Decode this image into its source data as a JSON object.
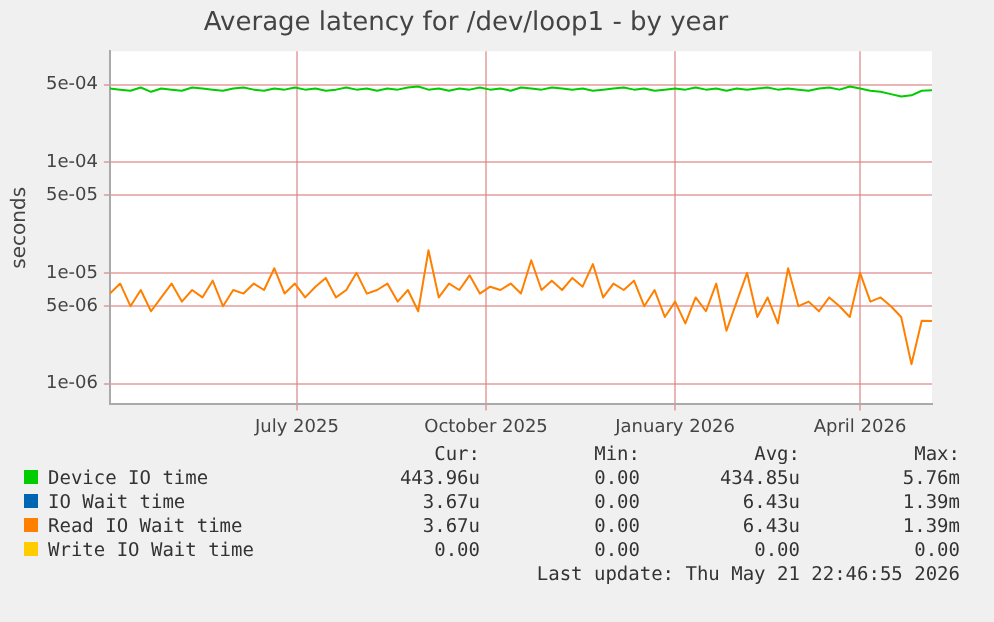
{
  "chart_data": {
    "type": "line",
    "title": "Average latency for /dev/loop1 - by year",
    "ylabel": "seconds",
    "log": true,
    "grid": true,
    "legend": "bottom",
    "xlim": [
      "2025-04-16",
      "2026-05-21"
    ],
    "xticks": [
      {
        "value": "2025-07-16",
        "label": "July 2025"
      },
      {
        "value": "2025-10-16",
        "label": "October 2025"
      },
      {
        "value": "2026-01-16",
        "label": "January 2026"
      },
      {
        "value": "2026-04-16",
        "label": "April 2026"
      }
    ],
    "ylim": [
      6.5e-07,
      0.001
    ],
    "yticks": [
      {
        "value": 1e-06,
        "label": "1e-06"
      },
      {
        "value": 5e-06,
        "label": "5e-06"
      },
      {
        "value": 1e-05,
        "label": "1e-05"
      },
      {
        "value": 5e-05,
        "label": "5e-05"
      },
      {
        "value": 0.0001,
        "label": "1e-04"
      },
      {
        "value": 0.0005,
        "label": "5e-04"
      }
    ],
    "x": [
      "2025-04-16",
      "2025-04-21",
      "2025-04-26",
      "2025-05-01",
      "2025-05-06",
      "2025-05-11",
      "2025-05-16",
      "2025-05-21",
      "2025-05-26",
      "2025-05-31",
      "2025-06-05",
      "2025-06-10",
      "2025-06-15",
      "2025-06-20",
      "2025-06-25",
      "2025-06-30",
      "2025-07-05",
      "2025-07-10",
      "2025-07-15",
      "2025-07-20",
      "2025-07-25",
      "2025-07-30",
      "2025-08-04",
      "2025-08-09",
      "2025-08-14",
      "2025-08-19",
      "2025-08-24",
      "2025-08-29",
      "2025-09-03",
      "2025-09-08",
      "2025-09-13",
      "2025-09-18",
      "2025-09-23",
      "2025-09-28",
      "2025-10-03",
      "2025-10-08",
      "2025-10-13",
      "2025-10-18",
      "2025-10-23",
      "2025-10-28",
      "2025-11-02",
      "2025-11-07",
      "2025-11-12",
      "2025-11-17",
      "2025-11-22",
      "2025-11-27",
      "2025-12-02",
      "2025-12-07",
      "2025-12-12",
      "2025-12-17",
      "2025-12-22",
      "2025-12-27",
      "2026-01-01",
      "2026-01-06",
      "2026-01-11",
      "2026-01-16",
      "2026-01-21",
      "2026-01-26",
      "2026-01-31",
      "2026-02-05",
      "2026-02-10",
      "2026-02-15",
      "2026-02-20",
      "2026-02-25",
      "2026-03-02",
      "2026-03-07",
      "2026-03-12",
      "2026-03-17",
      "2026-03-22",
      "2026-03-27",
      "2026-04-01",
      "2026-04-06",
      "2026-04-11",
      "2026-04-16",
      "2026-04-21",
      "2026-04-26",
      "2026-05-01",
      "2026-05-06",
      "2026-05-11",
      "2026-05-16",
      "2026-05-21"
    ],
    "series": [
      {
        "name": "Device IO time",
        "color": "#00cc00",
        "values": [
          0.00046,
          0.00045,
          0.00044,
          0.00047,
          0.00043,
          0.00046,
          0.00045,
          0.00044,
          0.00047,
          0.00046,
          0.00045,
          0.00044,
          0.00046,
          0.00047,
          0.00045,
          0.00044,
          0.00046,
          0.00045,
          0.00047,
          0.00045,
          0.00046,
          0.00044,
          0.00045,
          0.00047,
          0.00045,
          0.00046,
          0.00044,
          0.00046,
          0.00045,
          0.00047,
          0.00048,
          0.00045,
          0.00046,
          0.00044,
          0.00046,
          0.00045,
          0.00047,
          0.00045,
          0.00046,
          0.00044,
          0.00047,
          0.00046,
          0.00045,
          0.00047,
          0.00046,
          0.00045,
          0.00046,
          0.00044,
          0.00045,
          0.00046,
          0.00047,
          0.00045,
          0.00046,
          0.00044,
          0.00045,
          0.00046,
          0.00045,
          0.00047,
          0.00045,
          0.00046,
          0.00044,
          0.00046,
          0.00045,
          0.00046,
          0.00047,
          0.00045,
          0.00046,
          0.00045,
          0.00044,
          0.00046,
          0.00047,
          0.00045,
          0.00048,
          0.00046,
          0.00044,
          0.00043,
          0.00041,
          0.00039,
          0.0004,
          0.00044,
          0.000444
        ]
      },
      {
        "name": "IO Wait time",
        "color": "#0066b3",
        "values": [
          null,
          null,
          null,
          null,
          null,
          null,
          null,
          null,
          null,
          null,
          null,
          null,
          null,
          null,
          null,
          null,
          null,
          null,
          null,
          null,
          null,
          null,
          null,
          null,
          null,
          null,
          null,
          null,
          null,
          null,
          null,
          null,
          null,
          null,
          null,
          null,
          null,
          null,
          null,
          null,
          null,
          null,
          null,
          null,
          null,
          null,
          null,
          null,
          null,
          null,
          null,
          null,
          null,
          null,
          null,
          null,
          null,
          null,
          null,
          null,
          null,
          null,
          null,
          null,
          null,
          null,
          null,
          null,
          null,
          null,
          null,
          null,
          null,
          null,
          null,
          null,
          null,
          null,
          null,
          null,
          null
        ]
      },
      {
        "name": "Read IO Wait time",
        "color": "#ff8000",
        "values": [
          6.5e-06,
          8e-06,
          5e-06,
          7e-06,
          4.5e-06,
          6e-06,
          8e-06,
          5.5e-06,
          7e-06,
          6e-06,
          8.5e-06,
          5e-06,
          7e-06,
          6.5e-06,
          8e-06,
          7e-06,
          1.1e-05,
          6.5e-06,
          8e-06,
          6e-06,
          7.5e-06,
          9e-06,
          6e-06,
          7e-06,
          1e-05,
          6.5e-06,
          7e-06,
          8e-06,
          5.5e-06,
          7e-06,
          4.5e-06,
          1.6e-05,
          6e-06,
          8e-06,
          7e-06,
          9.5e-06,
          6.5e-06,
          7.5e-06,
          7e-06,
          8e-06,
          6.5e-06,
          1.3e-05,
          7e-06,
          8.5e-06,
          7e-06,
          9e-06,
          7.5e-06,
          1.2e-05,
          6e-06,
          8e-06,
          7e-06,
          8.5e-06,
          5e-06,
          7e-06,
          4e-06,
          5.5e-06,
          3.5e-06,
          6e-06,
          4.5e-06,
          8e-06,
          3e-06,
          5.5e-06,
          1e-05,
          4e-06,
          6e-06,
          3.5e-06,
          1.1e-05,
          5e-06,
          5.5e-06,
          4.5e-06,
          6e-06,
          5e-06,
          4e-06,
          1e-05,
          5.5e-06,
          6e-06,
          5e-06,
          4e-06,
          1.5e-06,
          3.7e-06,
          3.67e-06
        ]
      },
      {
        "name": "Write IO Wait time",
        "color": "#ffcc00",
        "values": [
          null,
          null,
          null,
          null,
          null,
          null,
          null,
          null,
          null,
          null,
          null,
          null,
          null,
          null,
          null,
          null,
          null,
          null,
          null,
          null,
          null,
          null,
          null,
          null,
          null,
          null,
          null,
          null,
          null,
          null,
          null,
          null,
          null,
          null,
          null,
          null,
          null,
          null,
          null,
          null,
          null,
          null,
          null,
          null,
          null,
          null,
          null,
          null,
          null,
          null,
          null,
          null,
          null,
          null,
          null,
          null,
          null,
          null,
          null,
          null,
          null,
          null,
          null,
          null,
          null,
          null,
          null,
          null,
          null,
          null,
          null,
          null,
          null,
          null,
          null,
          null,
          null,
          null,
          null,
          null,
          null
        ]
      }
    ],
    "annotations": [
      "Cur:",
      "Min:",
      "Avg:",
      "Max:",
      "443.96u",
      "0.00",
      "434.85u",
      "5.76m",
      "3.67u",
      "0.00",
      "6.43u",
      "1.39m",
      "3.67u",
      "0.00",
      "6.43u",
      "1.39m",
      "0.00",
      "0.00",
      "0.00",
      "0.00",
      "Last update: Thu May 21 22:46:55 2026"
    ]
  }
}
